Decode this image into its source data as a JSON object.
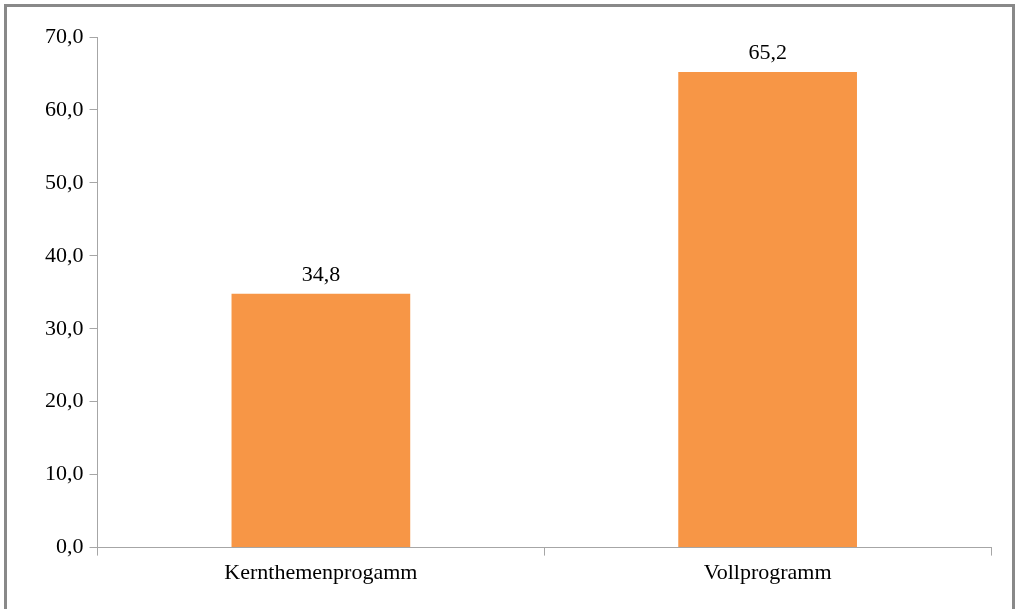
{
  "chart_data": {
    "type": "bar",
    "categories": [
      "Kernthemenprogamm",
      "Vollprogramm"
    ],
    "values": [
      34.8,
      65.2
    ],
    "color": "#f79646",
    "value_labels": [
      "34,8",
      "65,2"
    ],
    "ylim": [
      0,
      70
    ],
    "yticks": [
      {
        "value": 0,
        "label": "0,0"
      },
      {
        "value": 10,
        "label": "10,0"
      },
      {
        "value": 20,
        "label": "20,0"
      },
      {
        "value": 30,
        "label": "30,0"
      },
      {
        "value": 40,
        "label": "40,0"
      },
      {
        "value": 50,
        "label": "50,0"
      },
      {
        "value": 60,
        "label": "60,0"
      },
      {
        "value": 70,
        "label": "70,0"
      }
    ],
    "grid": false,
    "legend": false
  }
}
